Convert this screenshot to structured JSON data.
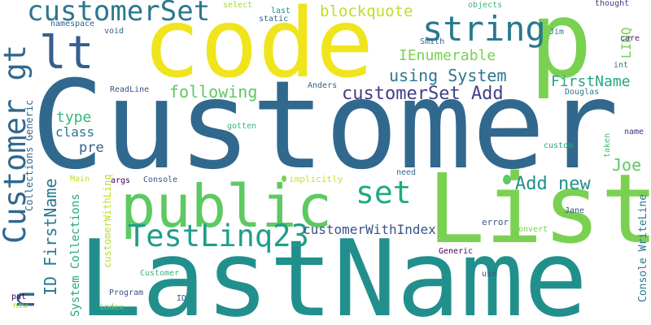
{
  "colors": {
    "background": "#ffffff",
    "palette": [
      "#440154",
      "#3b528b",
      "#21908d",
      "#5dc962",
      "#fde725"
    ]
  },
  "words": [
    {
      "id": "Customer",
      "text": "Customer",
      "color": "#31688e",
      "rotated": false
    },
    {
      "id": "LastName",
      "text": "LastName",
      "color": "#21908d",
      "rotated": false
    },
    {
      "id": "List",
      "text": "List",
      "color": "#7ad151",
      "rotated": false
    },
    {
      "id": "code",
      "text": "code",
      "color": "#f0e41d",
      "rotated": false
    },
    {
      "id": "p",
      "text": "p",
      "color": "#7ad151",
      "rotated": false
    },
    {
      "id": "public",
      "text": "public",
      "color": "#5dc962",
      "rotated": false
    },
    {
      "id": "lt",
      "text": "lt",
      "color": "#35608d",
      "rotated": false
    },
    {
      "id": "customerSet",
      "text": "customerSet",
      "color": "#2a788e",
      "rotated": false
    },
    {
      "id": "string",
      "text": "string",
      "color": "#2a788e",
      "rotated": false
    },
    {
      "id": "set",
      "text": "set",
      "color": "#22a884",
      "rotated": false
    },
    {
      "id": "TestLinq23",
      "text": "TestLinq23",
      "color": "#1f9e89",
      "rotated": false
    },
    {
      "id": "Customer-gt",
      "text": "Customer gt",
      "color": "#31688e",
      "rotated": true
    },
    {
      "id": "n",
      "text": "n",
      "color": "#35608d",
      "rotated": true
    },
    {
      "id": "customerSet-Add",
      "text": "customerSet Add",
      "color": "#433e85",
      "rotated": false
    },
    {
      "id": "using-System",
      "text": "using System",
      "color": "#2a788e",
      "rotated": false
    },
    {
      "id": "Add-new",
      "text": "Add new",
      "color": "#21908d",
      "rotated": false
    },
    {
      "id": "following",
      "text": "following",
      "color": "#5dc962",
      "rotated": false
    },
    {
      "id": "IEnumerable",
      "text": "IEnumerable",
      "color": "#7ad151",
      "rotated": false
    },
    {
      "id": "blockquote",
      "text": "blockquote",
      "color": "#bddf26",
      "rotated": false
    },
    {
      "id": "FirstName",
      "text": "FirstName",
      "color": "#22a884",
      "rotated": false
    },
    {
      "id": "type",
      "text": "type",
      "color": "#35b779",
      "rotated": false
    },
    {
      "id": "class",
      "text": "class",
      "color": "#2a788e",
      "rotated": false
    },
    {
      "id": "pre",
      "text": "pre",
      "color": "#35608d",
      "rotated": false
    },
    {
      "id": "Joe",
      "text": "Joe",
      "color": "#5dc962",
      "rotated": false
    },
    {
      "id": "LINQ",
      "text": "LINQ",
      "color": "#7ad151",
      "rotated": true
    },
    {
      "id": "ID-FirstName",
      "text": "ID FirstName",
      "color": "#2a788e",
      "rotated": true
    },
    {
      "id": "System-Collections",
      "text": "System Collections",
      "color": "#22a884",
      "rotated": true
    },
    {
      "id": "Collections-Generic",
      "text": "Collections Generic",
      "color": "#31688e",
      "rotated": true
    },
    {
      "id": "customerWithIndex",
      "text": "customerWithIndex",
      "color": "#3b528b",
      "rotated": false
    },
    {
      "id": "Console-WriteLine",
      "text": "Console WriteLine",
      "color": "#2a788e",
      "rotated": true
    },
    {
      "id": "customerWithLinq",
      "text": "customerWithLinq",
      "color": "#bddf26",
      "rotated": true
    },
    {
      "id": "namespace",
      "text": "namespace",
      "color": "#35608d",
      "rotated": false
    },
    {
      "id": "void",
      "text": "void",
      "color": "#35608d",
      "rotated": false
    },
    {
      "id": "select",
      "text": "select",
      "color": "#a0da39",
      "rotated": false
    },
    {
      "id": "last",
      "text": "last",
      "color": "#21908d",
      "rotated": false
    },
    {
      "id": "static",
      "text": "static",
      "color": "#31688e",
      "rotated": false
    },
    {
      "id": "objects",
      "text": "objects",
      "color": "#35b779",
      "rotated": false
    },
    {
      "id": "thought",
      "text": "thought",
      "color": "#443983",
      "rotated": false
    },
    {
      "id": "Jim",
      "text": "Jim",
      "color": "#2a788e",
      "rotated": false
    },
    {
      "id": "care",
      "text": "care",
      "color": "#482475",
      "rotated": false
    },
    {
      "id": "Smith",
      "text": "Smith",
      "color": "#31688e",
      "rotated": false
    },
    {
      "id": "int",
      "text": "int",
      "color": "#2a788e",
      "rotated": false
    },
    {
      "id": "ReadLine",
      "text": "ReadLine",
      "color": "#3b528b",
      "rotated": false
    },
    {
      "id": "Anders",
      "text": "Anders",
      "color": "#35608d",
      "rotated": false
    },
    {
      "id": "Douglas",
      "text": "Douglas",
      "color": "#2a788e",
      "rotated": false
    },
    {
      "id": "gotten",
      "text": "gotten",
      "color": "#35b779",
      "rotated": false
    },
    {
      "id": "custom",
      "text": "custom",
      "color": "#22a884",
      "rotated": false
    },
    {
      "id": "name",
      "text": "name",
      "color": "#46327e",
      "rotated": false
    },
    {
      "id": "taken",
      "text": "taken",
      "color": "#44bf70",
      "rotated": true
    },
    {
      "id": "Main",
      "text": "Main",
      "color": "#bddf26",
      "rotated": false
    },
    {
      "id": "args",
      "text": "args",
      "color": "#440154",
      "rotated": false
    },
    {
      "id": "Console",
      "text": "Console",
      "color": "#3b528b",
      "rotated": false
    },
    {
      "id": "implicitly",
      "text": "implicitly",
      "color": "#d0e11c",
      "rotated": false
    },
    {
      "id": "need",
      "text": "need",
      "color": "#31688e",
      "rotated": false
    },
    {
      "id": "error",
      "text": "error",
      "color": "#3b528b",
      "rotated": false
    },
    {
      "id": "convert",
      "text": "convert",
      "color": "#7ad151",
      "rotated": false
    },
    {
      "id": "Jane",
      "text": "Jane",
      "color": "#3b528b",
      "rotated": false
    },
    {
      "id": "Generic",
      "text": "Generic",
      "color": "#440154",
      "rotated": false
    },
    {
      "id": "use",
      "text": "use",
      "color": "#3b528b",
      "rotated": false
    },
    {
      "id": "Customer-small",
      "text": "Customer",
      "color": "#35b779",
      "rotated": false
    },
    {
      "id": "Program",
      "text": "Program",
      "color": "#3b528b",
      "rotated": false
    },
    {
      "id": "ID",
      "text": "ID",
      "color": "#3b528b",
      "rotated": false
    },
    {
      "id": "index",
      "text": "index",
      "color": "#5dc962",
      "rotated": false
    },
    {
      "id": "put",
      "text": "put",
      "color": "#440154",
      "rotated": false
    },
    {
      "id": "new",
      "text": "new",
      "color": "#a0da39",
      "rotated": false
    }
  ]
}
